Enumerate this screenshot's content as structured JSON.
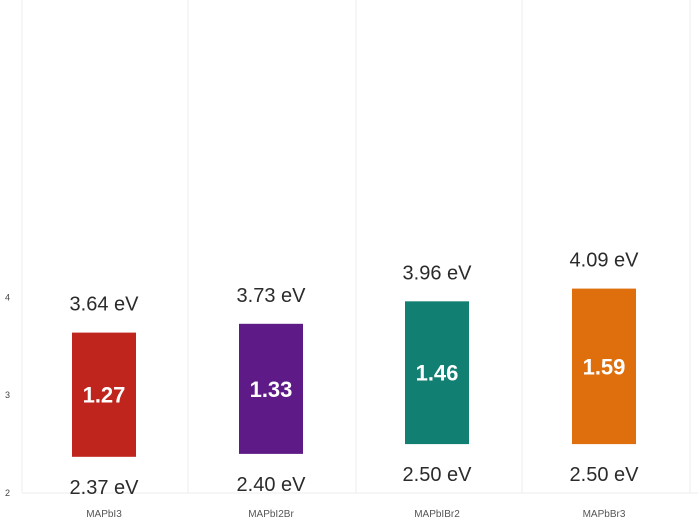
{
  "chart_data": {
    "type": "bar",
    "subtype": "floating-range",
    "categories": [
      "MAPbI3",
      "MAPbI2Br",
      "MAPbIBr2",
      "MAPbBr3"
    ],
    "series": [
      {
        "top_values": [
          3.64,
          3.73,
          3.96,
          4.09
        ],
        "bottom_values": [
          2.37,
          2.4,
          2.5,
          2.5
        ],
        "gap_values": [
          1.27,
          1.33,
          1.46,
          1.59
        ]
      }
    ],
    "top_labels": [
      "3.64 eV",
      "3.73 eV",
      "3.96 eV",
      "4.09 eV"
    ],
    "bottom_labels": [
      "2.37 eV",
      "2.40 eV",
      "2.50 eV",
      "2.50 eV"
    ],
    "gap_labels": [
      "1.27",
      "1.33",
      "1.46",
      "1.59"
    ],
    "colors": [
      "#c0251d",
      "#5e1a87",
      "#127f73",
      "#df6f0d"
    ],
    "y_ticks": [
      2,
      3,
      4
    ],
    "y_tick_labels": [
      "2",
      "3",
      "4"
    ],
    "ylim": [
      2.0,
      4.3
    ],
    "grid": "vertical lines between categories",
    "title": "",
    "xlabel": "",
    "ylabel": ""
  }
}
